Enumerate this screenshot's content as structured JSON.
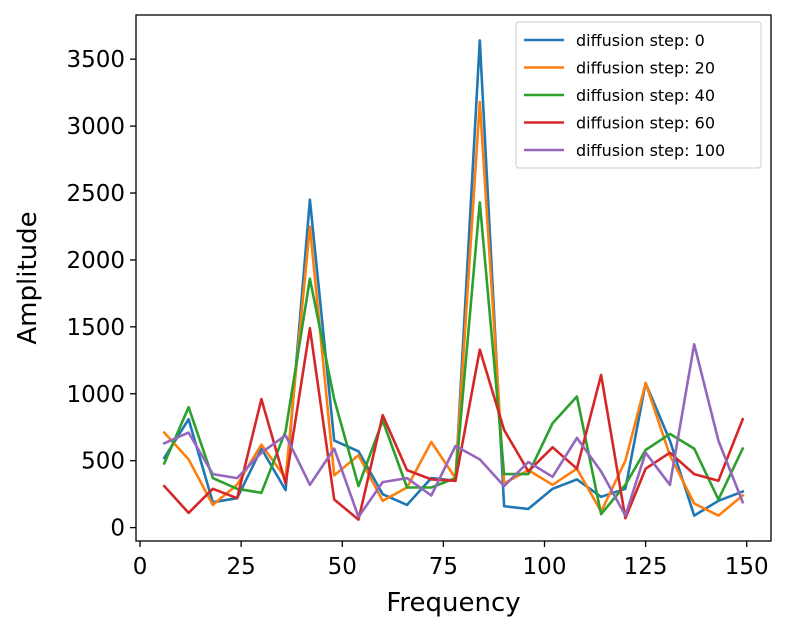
{
  "chart_data": {
    "type": "line",
    "title": "",
    "xlabel": "Frequency",
    "ylabel": "Amplitude",
    "xlim": [
      -1,
      156
    ],
    "ylim": [
      -100,
      3830
    ],
    "xticks": [
      0,
      25,
      50,
      75,
      100,
      125,
      150
    ],
    "yticks": [
      0,
      500,
      1000,
      1500,
      2000,
      2500,
      3000,
      3500
    ],
    "grid": false,
    "legend_position": "top-right",
    "x": [
      6,
      12,
      18,
      24,
      30,
      36,
      42,
      48,
      54,
      60,
      66,
      72,
      78,
      84,
      90,
      96,
      102,
      108,
      114,
      120,
      125,
      131,
      137,
      143,
      149
    ],
    "series": [
      {
        "name": "diffusion step: 0",
        "color": "#1f77b4",
        "values": [
          520,
          810,
          190,
          220,
          590,
          280,
          2450,
          650,
          570,
          250,
          170,
          370,
          350,
          3640,
          160,
          140,
          290,
          360,
          230,
          290,
          1080,
          650,
          90,
          200,
          270
        ]
      },
      {
        "name": "diffusion step: 20",
        "color": "#ff7f0e",
        "values": [
          710,
          510,
          170,
          320,
          620,
          370,
          2250,
          390,
          540,
          200,
          300,
          640,
          370,
          3180,
          330,
          430,
          320,
          440,
          120,
          500,
          1080,
          540,
          180,
          90,
          240
        ]
      },
      {
        "name": "diffusion step: 40",
        "color": "#2ca02c",
        "values": [
          480,
          900,
          370,
          290,
          260,
          720,
          1860,
          960,
          310,
          800,
          300,
          300,
          370,
          2430,
          400,
          400,
          780,
          980,
          100,
          320,
          580,
          700,
          590,
          210,
          590
        ]
      },
      {
        "name": "diffusion step: 60",
        "color": "#d62728",
        "values": [
          310,
          110,
          290,
          220,
          960,
          330,
          1490,
          210,
          60,
          840,
          430,
          360,
          350,
          1330,
          730,
          420,
          600,
          440,
          1140,
          70,
          440,
          560,
          400,
          350,
          810
        ]
      },
      {
        "name": "diffusion step: 100",
        "color": "#9467bd",
        "values": [
          630,
          710,
          400,
          370,
          560,
          690,
          320,
          590,
          80,
          340,
          370,
          240,
          610,
          510,
          310,
          490,
          380,
          670,
          420,
          90,
          560,
          320,
          1370,
          650,
          190
        ]
      }
    ]
  }
}
